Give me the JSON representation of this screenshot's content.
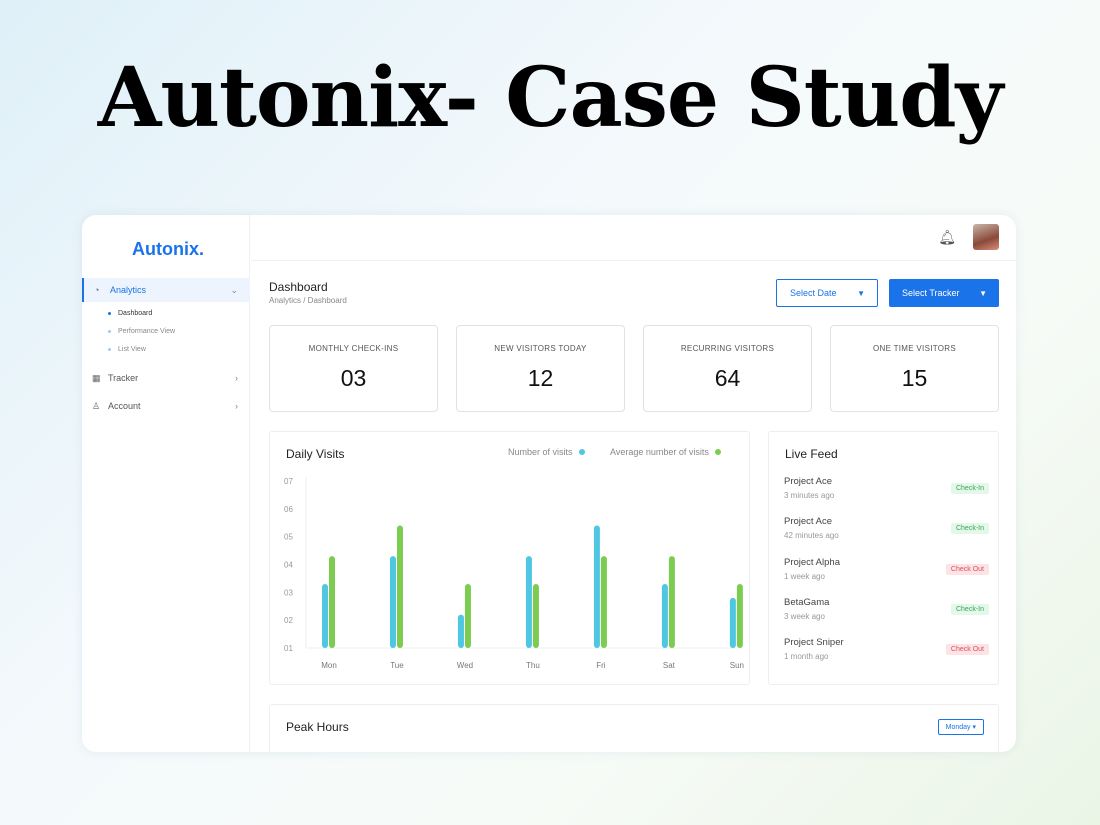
{
  "headline": "Autonix- Case Study",
  "sidebar": {
    "logo": "Autonix.",
    "items": [
      {
        "label": "Analytics",
        "icon": "analytics-icon",
        "sub": [
          "Dashboard",
          "Performance View",
          "List View"
        ]
      },
      {
        "label": "Tracker",
        "icon": "qr-icon"
      },
      {
        "label": "Account",
        "icon": "user-icon"
      }
    ]
  },
  "header": {
    "title": "Dashboard",
    "breadcrumb": "Analytics / Dashboard",
    "select_date": "Select Date",
    "select_tracker": "Select Tracker"
  },
  "stats": [
    {
      "label": "MONTHLY CHECK-INS",
      "value": "03"
    },
    {
      "label": "NEW VISITORS TODAY",
      "value": "12"
    },
    {
      "label": "RECURRING VISITORS",
      "value": "64"
    },
    {
      "label": "ONE TIME VISITORS",
      "value": "15"
    }
  ],
  "chart_data": {
    "type": "bar",
    "title": "Daily Visits",
    "categories": [
      "Mon",
      "Tue",
      "Wed",
      "Thu",
      "Fri",
      "Sat",
      "Sun"
    ],
    "yticks": [
      "01",
      "02",
      "03",
      "04",
      "05",
      "06",
      "07"
    ],
    "ylim": [
      1,
      7
    ],
    "series": [
      {
        "name": "Number of visits",
        "color": "#4fc7e3",
        "values": [
          3.3,
          4.3,
          2.2,
          4.3,
          5.4,
          3.3,
          2.8
        ]
      },
      {
        "name": "Average number of visits",
        "color": "#7ccc52",
        "values": [
          4.3,
          5.4,
          3.3,
          3.3,
          4.3,
          4.3,
          3.3
        ]
      }
    ]
  },
  "live_feed": {
    "title": "Live Feed",
    "items": [
      {
        "name": "Project Ace",
        "time": "3 minutes ago",
        "status": "Check-In"
      },
      {
        "name": "Project Ace",
        "time": "42 minutes ago",
        "status": "Check-In"
      },
      {
        "name": "Project Alpha",
        "time": "1 week ago",
        "status": "Check Out"
      },
      {
        "name": "BetaGama",
        "time": "3 week ago",
        "status": "Check-In"
      },
      {
        "name": "Project Sniper",
        "time": "1 month ago",
        "status": "Check Out"
      }
    ]
  },
  "peak": {
    "title": "Peak Hours",
    "select": "Monday"
  }
}
